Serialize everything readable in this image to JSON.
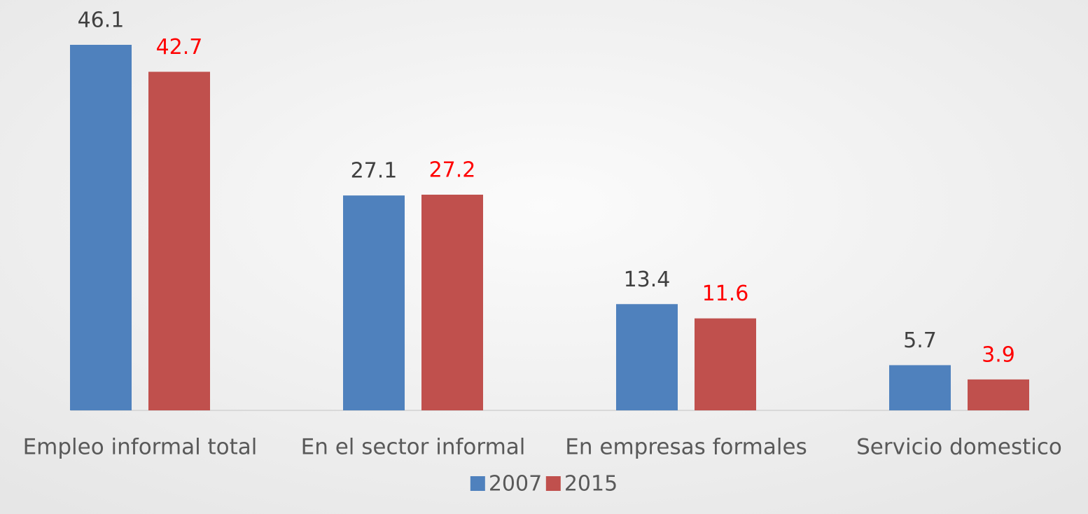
{
  "chart_data": {
    "type": "bar",
    "categories": [
      "Empleo informal total",
      "En el sector informal",
      "En empresas formales",
      "Servicio domestico"
    ],
    "series": [
      {
        "name": "2007",
        "color": "#4f81bd",
        "label_color": "#404040",
        "values": [
          46.1,
          27.1,
          13.4,
          5.7
        ]
      },
      {
        "name": "2015",
        "color": "#c0504d",
        "label_color": "#ff0000",
        "values": [
          42.7,
          27.2,
          11.6,
          3.9
        ]
      }
    ],
    "legend": "bottom"
  }
}
